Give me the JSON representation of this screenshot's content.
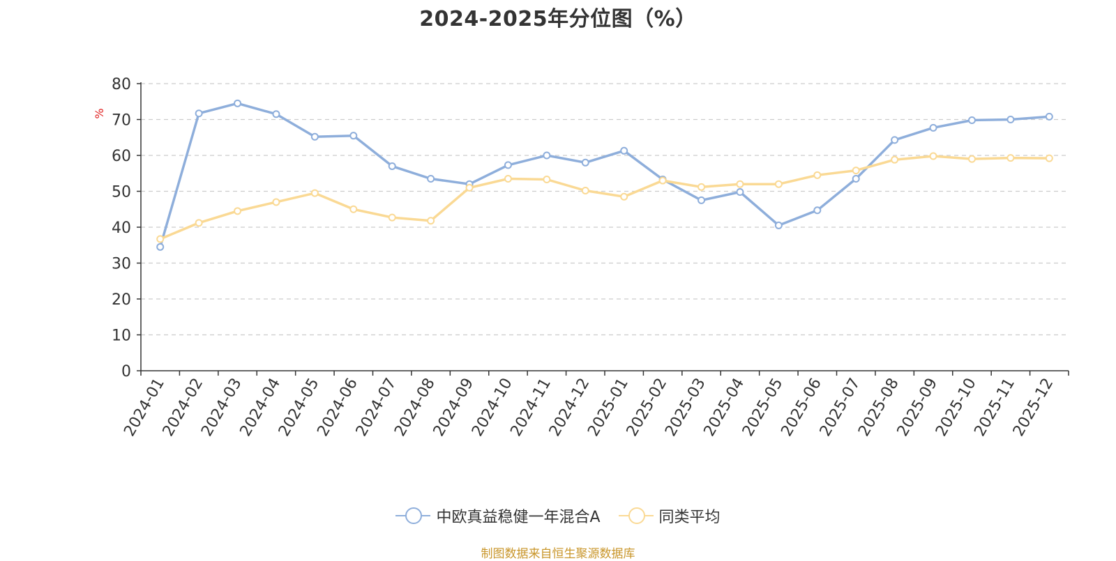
{
  "title": "2024-2025年分位图（%）",
  "source_note": "制图数据来自恒生聚源数据库",
  "chart_data": {
    "type": "line",
    "ylabel": "%",
    "xlabel": "",
    "ylim": [
      0,
      80
    ],
    "yticks": [
      0,
      10,
      20,
      30,
      40,
      50,
      60,
      70,
      80
    ],
    "grid": true,
    "legend_position": "bottom-center",
    "categories": [
      "2024-01",
      "2024-02",
      "2024-03",
      "2024-04",
      "2024-05",
      "2024-06",
      "2024-07",
      "2024-08",
      "2024-09",
      "2024-10",
      "2024-11",
      "2024-12",
      "2025-01",
      "2025-02",
      "2025-03",
      "2025-04",
      "2025-05",
      "2025-06",
      "2025-07",
      "2025-08",
      "2025-09",
      "2025-10",
      "2025-11",
      "2025-12"
    ],
    "series": [
      {
        "name": "中欧真益稳健一年混合A",
        "color": "#8eaedb",
        "values": [
          34.5,
          71.7,
          74.5,
          71.5,
          65.2,
          65.5,
          57.0,
          53.5,
          52.0,
          57.3,
          60.0,
          58.0,
          61.3,
          53.3,
          47.5,
          49.8,
          40.5,
          44.7,
          53.5,
          64.3,
          67.7,
          69.8,
          70.0,
          70.8
        ]
      },
      {
        "name": "同类平均",
        "color": "#fad994",
        "values": [
          36.7,
          41.2,
          44.5,
          47.0,
          49.5,
          45.0,
          42.7,
          41.8,
          51.0,
          53.5,
          53.3,
          50.2,
          48.5,
          53.0,
          51.2,
          52.0,
          52.0,
          54.5,
          55.8,
          58.8,
          59.8,
          59.0,
          59.3,
          59.2
        ]
      }
    ]
  }
}
